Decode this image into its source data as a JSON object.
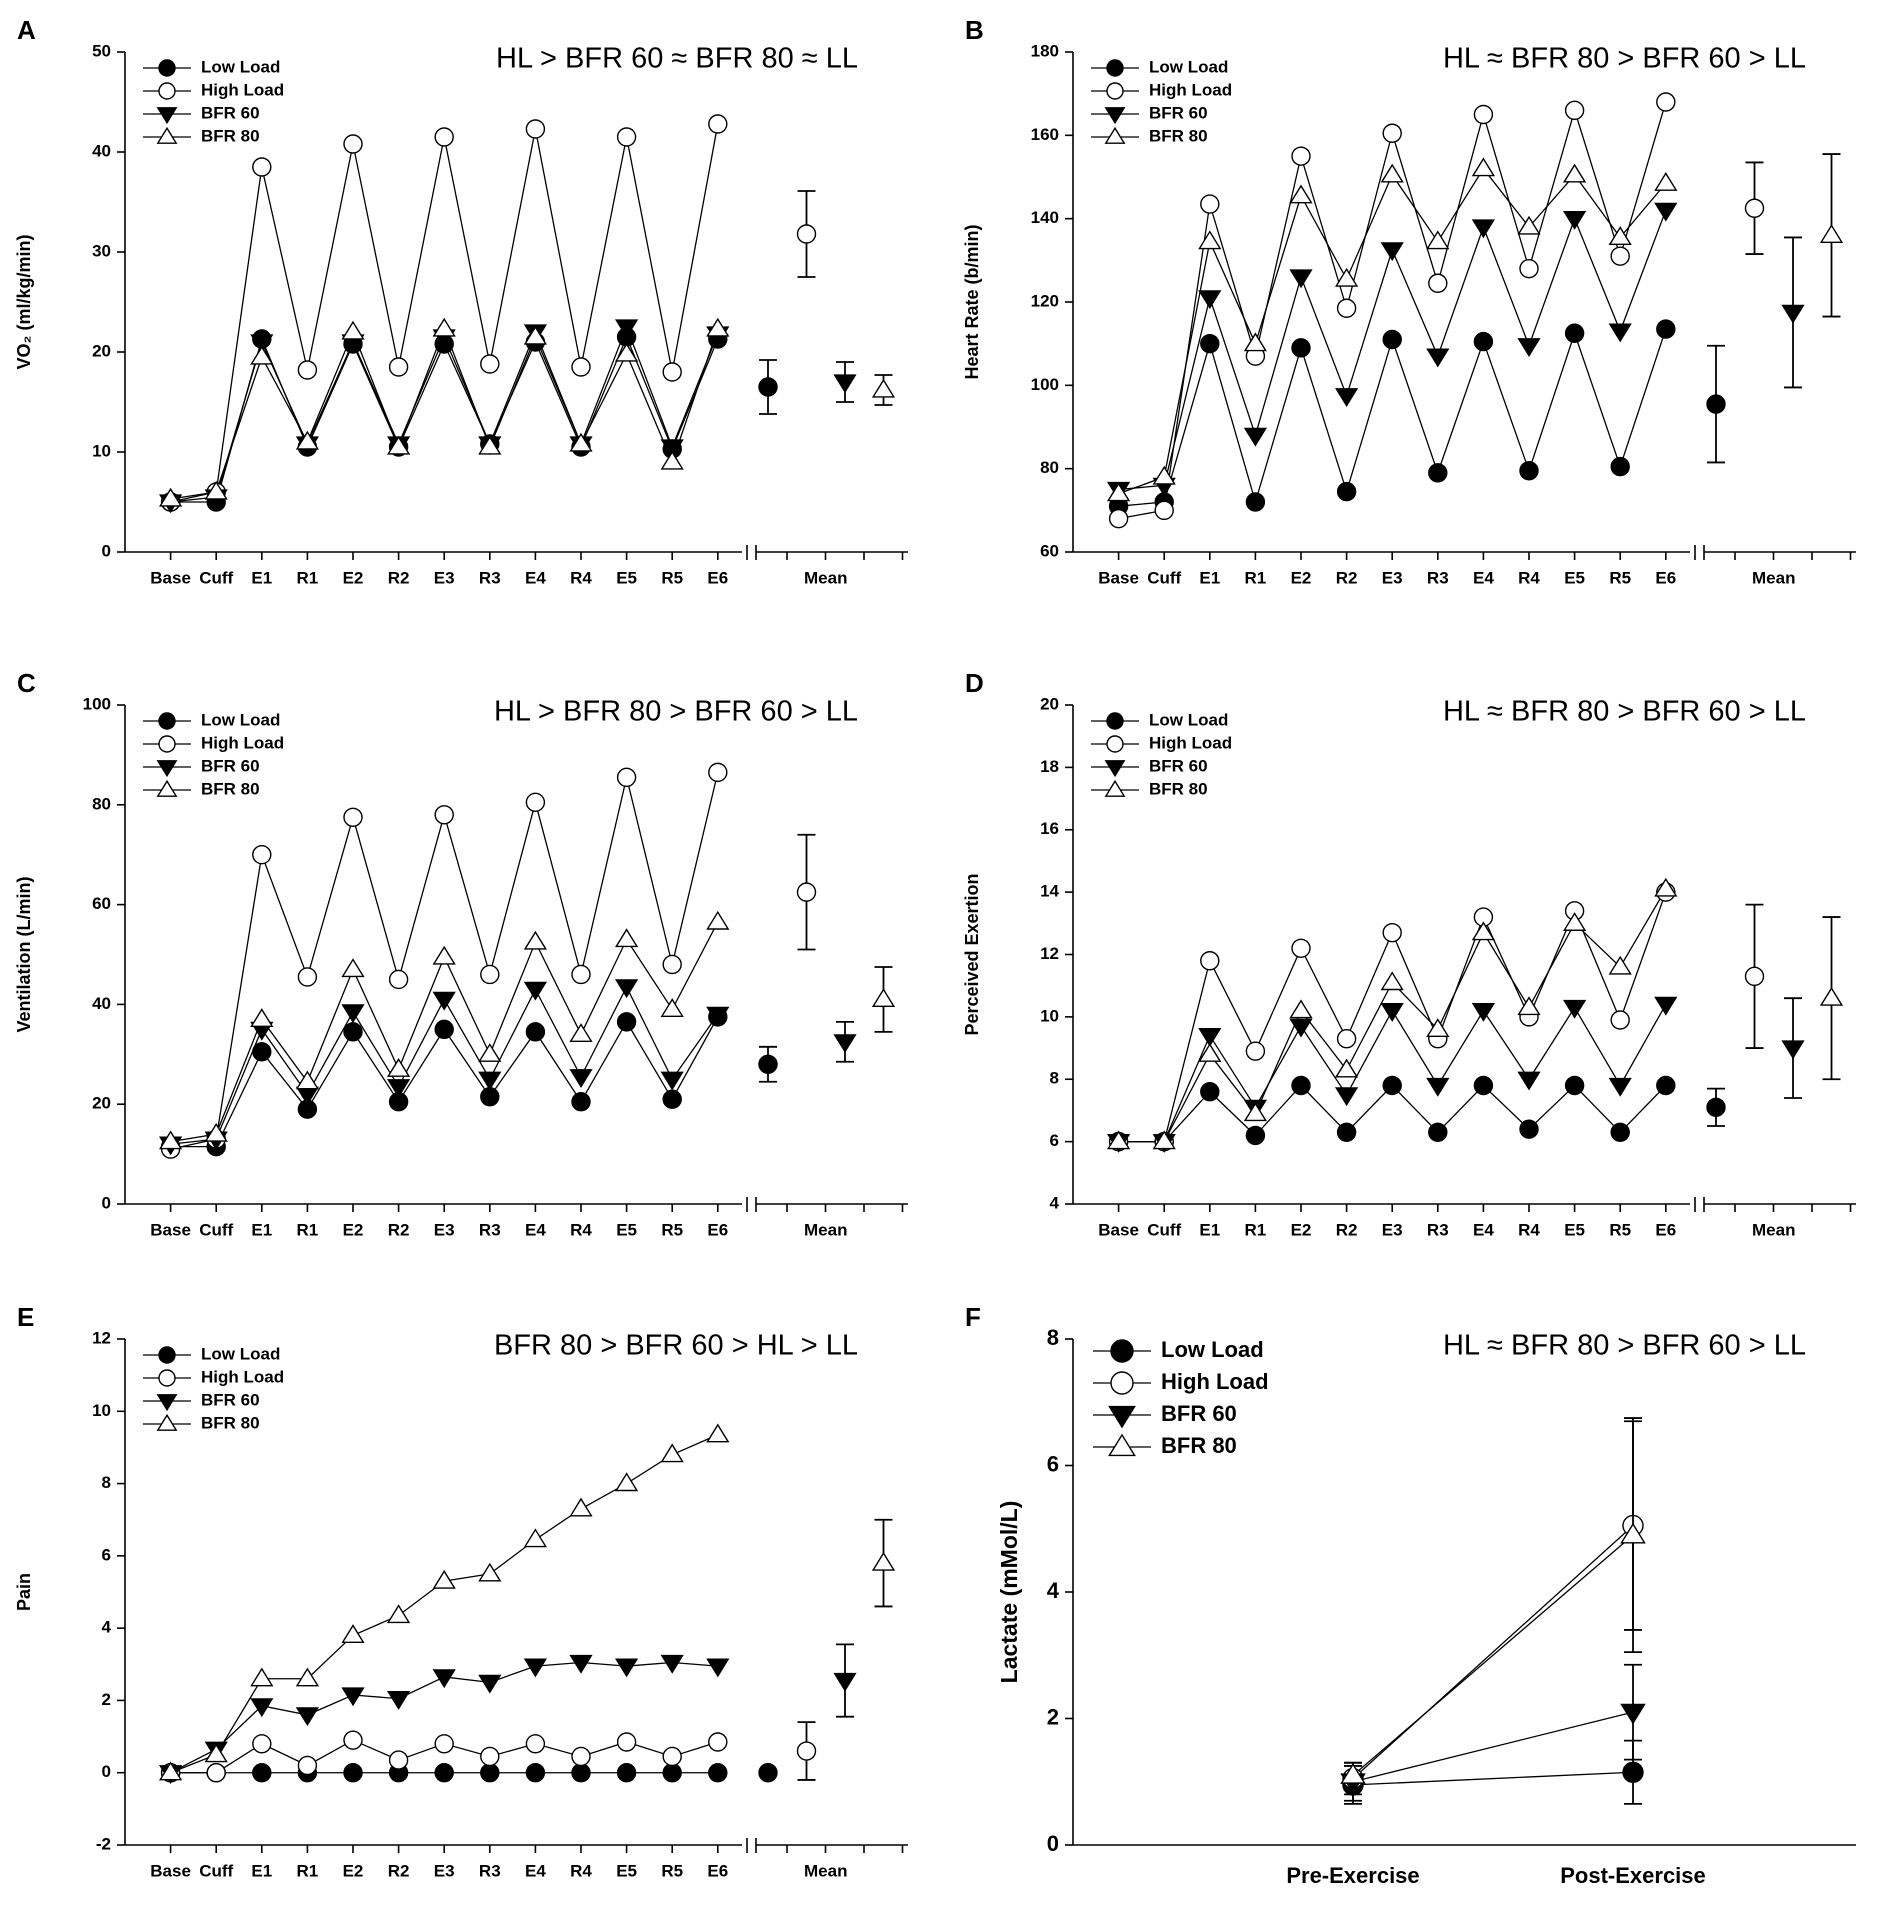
{
  "chart_data": [
    {
      "type": "line",
      "label": "A",
      "title": "HL > BFR 60 ≈ BFR 80 ≈ LL",
      "y_label": "VO₂ (ml/kg/min)",
      "categories": [
        "Base",
        "Cuff",
        "E1",
        "R1",
        "E2",
        "R2",
        "E3",
        "R3",
        "E4",
        "R4",
        "E5",
        "R5",
        "E6"
      ],
      "mean_label": "Mean",
      "ylim": [
        0,
        50
      ],
      "yticks": [
        0,
        10,
        20,
        30,
        40,
        50
      ],
      "series": [
        {
          "name": "Low Load",
          "marker": "circle",
          "fill": "#000",
          "color": "#000",
          "values": [
            5,
            5,
            21.3,
            10.5,
            20.8,
            10.5,
            20.8,
            10.8,
            21,
            10.5,
            21.5,
            10.3,
            21.3
          ],
          "mean": 16.5,
          "mean_error": 2.7
        },
        {
          "name": "High Load",
          "marker": "circle",
          "fill": "#fff",
          "color": "#000",
          "values": [
            5,
            6,
            38.5,
            18.2,
            40.8,
            18.5,
            41.5,
            18.8,
            42.3,
            18.5,
            41.5,
            18,
            42.8
          ],
          "mean": 31.8,
          "mean_error": 4.3
        },
        {
          "name": "BFR 60",
          "marker": "triangle-down",
          "fill": "#000",
          "color": "#000",
          "values": [
            5,
            5.5,
            21,
            10.8,
            21,
            10.8,
            21.5,
            10.8,
            22,
            10.8,
            22.5,
            10.5,
            21.8
          ],
          "mean": 17,
          "mean_error": 2
        },
        {
          "name": "BFR 80",
          "marker": "triangle-up",
          "fill": "#fff",
          "color": "#000",
          "values": [
            5.3,
            6,
            19.5,
            11,
            22,
            10.5,
            22.3,
            10.5,
            21.5,
            10.8,
            19.8,
            9,
            22.3
          ],
          "mean": 16.2,
          "mean_error": 1.5
        }
      ]
    },
    {
      "type": "line",
      "label": "B",
      "title": "HL ≈ BFR 80 > BFR 60 > LL",
      "y_label": "Heart Rate (b/min)",
      "categories": [
        "Base",
        "Cuff",
        "E1",
        "R1",
        "E2",
        "R2",
        "E3",
        "R3",
        "E4",
        "R4",
        "E5",
        "R5",
        "E6"
      ],
      "mean_label": "Mean",
      "ylim": [
        60,
        180
      ],
      "yticks": [
        60,
        80,
        100,
        120,
        140,
        160,
        180
      ],
      "series": [
        {
          "name": "Low Load",
          "marker": "circle",
          "fill": "#000",
          "color": "#000",
          "values": [
            71,
            72,
            110,
            72,
            109,
            74.5,
            111,
            79,
            110.5,
            79.5,
            112.5,
            80.5,
            113.5
          ],
          "mean": 95.5,
          "mean_error": 14
        },
        {
          "name": "High Load",
          "marker": "circle",
          "fill": "#fff",
          "color": "#000",
          "values": [
            68,
            70,
            143.5,
            107,
            155,
            118.5,
            160.5,
            124.5,
            165,
            128,
            166,
            131,
            168
          ],
          "mean": 142.5,
          "mean_error": 11
        },
        {
          "name": "BFR 60",
          "marker": "triangle-down",
          "fill": "#000",
          "color": "#000",
          "values": [
            75,
            76,
            121,
            88,
            126,
            97.5,
            132.5,
            107,
            138,
            109.5,
            140,
            113,
            142
          ],
          "mean": 117.5,
          "mean_error": 18
        },
        {
          "name": "BFR 80",
          "marker": "triangle-up",
          "fill": "#fff",
          "color": "#000",
          "values": [
            74,
            78,
            134.5,
            110,
            145.5,
            125.5,
            150.5,
            134.5,
            152,
            138,
            150.5,
            135.5,
            148.5
          ],
          "mean": 136,
          "mean_error": 19.5
        }
      ]
    },
    {
      "type": "line",
      "label": "C",
      "title": "HL > BFR 80 > BFR 60 > LL",
      "y_label": "Ventilation (L/min)",
      "categories": [
        "Base",
        "Cuff",
        "E1",
        "R1",
        "E2",
        "R2",
        "E3",
        "R3",
        "E4",
        "R4",
        "E5",
        "R5",
        "E6"
      ],
      "mean_label": "Mean",
      "ylim": [
        0,
        100
      ],
      "yticks": [
        0,
        20,
        40,
        60,
        80,
        100
      ],
      "series": [
        {
          "name": "Low Load",
          "marker": "circle",
          "fill": "#000",
          "color": "#000",
          "values": [
            11.5,
            11.5,
            30.5,
            19,
            34.5,
            20.5,
            35,
            21.5,
            34.5,
            20.5,
            36.5,
            21,
            37.5
          ],
          "mean": 28,
          "mean_error": 3.5
        },
        {
          "name": "High Load",
          "marker": "circle",
          "fill": "#fff",
          "color": "#000",
          "values": [
            11,
            13,
            70,
            45.5,
            77.5,
            45,
            78,
            46,
            80.5,
            46,
            85.5,
            48,
            86.5
          ],
          "mean": 62.5,
          "mean_error": 11.5
        },
        {
          "name": "BFR 60",
          "marker": "triangle-down",
          "fill": "#000",
          "color": "#000",
          "values": [
            12,
            13,
            35,
            22,
            38.5,
            23.5,
            41,
            25,
            43,
            25.5,
            43.5,
            25,
            38
          ],
          "mean": 32.5,
          "mean_error": 4
        },
        {
          "name": "BFR 80",
          "marker": "triangle-up",
          "fill": "#fff",
          "color": "#000",
          "values": [
            12.5,
            14,
            37,
            24.5,
            47,
            27,
            49.5,
            30,
            52.5,
            34,
            53,
            39,
            56.5
          ],
          "mean": 41,
          "mean_error": 6.5
        }
      ]
    },
    {
      "type": "line",
      "label": "D",
      "title": "HL ≈ BFR 80 > BFR 60 > LL",
      "y_label": "Perceived Exertion",
      "categories": [
        "Base",
        "Cuff",
        "E1",
        "R1",
        "E2",
        "R2",
        "E3",
        "R3",
        "E4",
        "R4",
        "E5",
        "R5",
        "E6"
      ],
      "mean_label": "Mean",
      "ylim": [
        4,
        20
      ],
      "yticks": [
        4,
        6,
        8,
        10,
        12,
        14,
        16,
        18,
        20
      ],
      "series": [
        {
          "name": "Low Load",
          "marker": "circle",
          "fill": "#000",
          "color": "#000",
          "values": [
            6,
            6,
            7.6,
            6.2,
            7.8,
            6.3,
            7.8,
            6.3,
            7.8,
            6.4,
            7.8,
            6.3,
            7.8
          ],
          "mean": 7.1,
          "mean_error": 0.6
        },
        {
          "name": "High Load",
          "marker": "circle",
          "fill": "#fff",
          "color": "#000",
          "values": [
            6,
            6,
            11.8,
            8.9,
            12.2,
            9.3,
            12.7,
            9.3,
            13.2,
            10,
            13.4,
            9.9,
            14
          ],
          "mean": 11.3,
          "mean_error": 2.3
        },
        {
          "name": "BFR 60",
          "marker": "triangle-down",
          "fill": "#000",
          "color": "#000",
          "values": [
            6,
            6,
            9.4,
            7.1,
            9.7,
            7.5,
            10.2,
            7.8,
            10.2,
            8,
            10.3,
            7.8,
            10.4
          ],
          "mean": 9,
          "mean_error": 1.6
        },
        {
          "name": "BFR 80",
          "marker": "triangle-up",
          "fill": "#fff",
          "color": "#000",
          "values": [
            6,
            6,
            8.8,
            6.9,
            10.2,
            8.3,
            11.1,
            9.6,
            12.7,
            10.3,
            13,
            11.6,
            14.1
          ],
          "mean": 10.6,
          "mean_error": 2.6
        }
      ]
    },
    {
      "type": "line",
      "label": "E",
      "title": "BFR 80 > BFR 60 > HL > LL",
      "y_label": "Pain",
      "categories": [
        "Base",
        "Cuff",
        "E1",
        "R1",
        "E2",
        "R2",
        "E3",
        "R3",
        "E4",
        "R4",
        "E5",
        "R5",
        "E6"
      ],
      "mean_label": "Mean",
      "ylim": [
        -2,
        12
      ],
      "yticks": [
        -2,
        0,
        2,
        4,
        6,
        8,
        10,
        12
      ],
      "series": [
        {
          "name": "Low Load",
          "marker": "circle",
          "fill": "#000",
          "color": "#000",
          "values": [
            0,
            0,
            0,
            0,
            0,
            0,
            0,
            0,
            0,
            0,
            0,
            0,
            0
          ],
          "mean": 0,
          "mean_error": 0
        },
        {
          "name": "High Load",
          "marker": "circle",
          "fill": "#fff",
          "color": "#000",
          "values": [
            0,
            0,
            0.8,
            0.2,
            0.9,
            0.35,
            0.8,
            0.45,
            0.8,
            0.45,
            0.85,
            0.45,
            0.85
          ],
          "mean": 0.6,
          "mean_error": 0.8
        },
        {
          "name": "BFR 60",
          "marker": "triangle-down",
          "fill": "#000",
          "color": "#000",
          "values": [
            0,
            0.65,
            1.85,
            1.6,
            2.15,
            2.05,
            2.65,
            2.5,
            2.95,
            3.05,
            2.95,
            3.05,
            2.95
          ],
          "mean": 2.55,
          "mean_error": 1
        },
        {
          "name": "BFR 80",
          "marker": "triangle-up",
          "fill": "#fff",
          "color": "#000",
          "values": [
            0,
            0.5,
            2.6,
            2.6,
            3.8,
            4.35,
            5.3,
            5.5,
            6.45,
            7.3,
            8,
            8.8,
            9.35
          ],
          "mean": 5.8,
          "mean_error": 1.2
        }
      ]
    },
    {
      "type": "line",
      "label": "F",
      "title": "HL ≈ BFR 80 > BFR 60 > LL",
      "y_label": "Lactate (mMol/L)",
      "categories": [
        "Pre-Exercise",
        "Post-Exercise"
      ],
      "ylim": [
        0,
        8
      ],
      "yticks": [
        0,
        2,
        4,
        6,
        8
      ],
      "series": [
        {
          "name": "Low Load",
          "marker": "circle",
          "fill": "#000",
          "color": "#000",
          "values": [
            0.95,
            1.15
          ],
          "errors": [
            0.3,
            0.5
          ]
        },
        {
          "name": "High Load",
          "marker": "circle",
          "fill": "#fff",
          "color": "#000",
          "values": [
            1.05,
            5.05
          ],
          "errors": [
            0.25,
            1.65
          ]
        },
        {
          "name": "BFR 60",
          "marker": "triangle-down",
          "fill": "#000",
          "color": "#000",
          "values": [
            1.0,
            2.1
          ],
          "errors": [
            0.3,
            0.75
          ]
        },
        {
          "name": "BFR 80",
          "marker": "triangle-up",
          "fill": "#fff",
          "color": "#000",
          "values": [
            1.1,
            4.9
          ],
          "errors": [
            0.2,
            1.85
          ]
        }
      ]
    }
  ]
}
